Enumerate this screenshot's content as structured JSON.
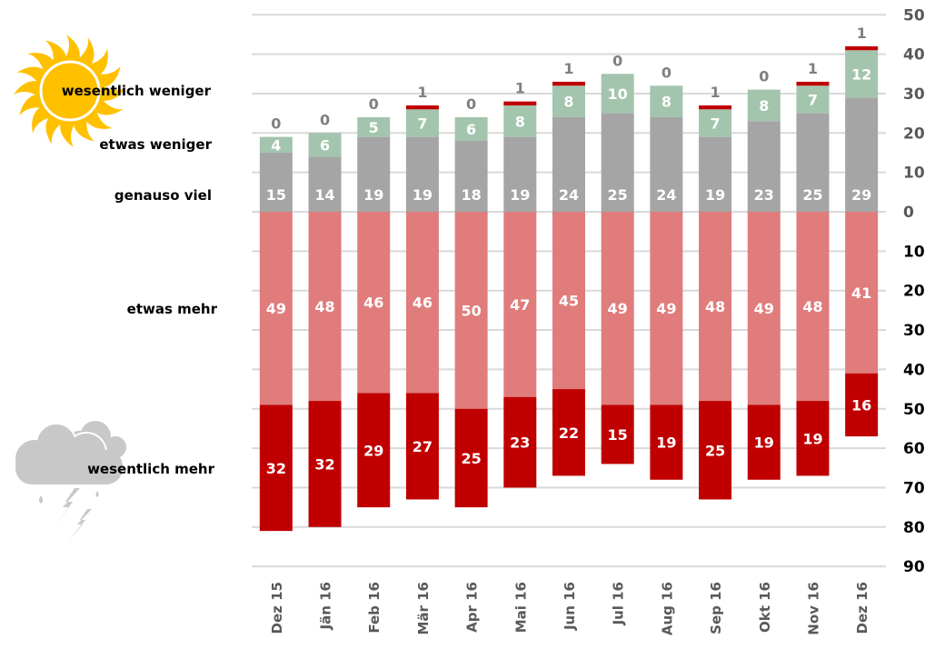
{
  "chart_data": {
    "type": "bar",
    "subtype": "diverging-stacked",
    "title": "",
    "xlabel": "",
    "ylabel": "",
    "categories": [
      "Dez 15",
      "Jän 16",
      "Feb 16",
      "Mär 16",
      "Apr 16",
      "Mai 16",
      "Jun 16",
      "Jul 16",
      "Aug 16",
      "Sep 16",
      "Okt 16",
      "Nov 16",
      "Dez 16"
    ],
    "series": [
      {
        "name": "genauso viel",
        "direction": "up",
        "color": "#a5a5a5",
        "values": [
          15,
          14,
          19,
          19,
          18,
          19,
          24,
          25,
          24,
          19,
          23,
          25,
          29
        ]
      },
      {
        "name": "etwas weniger",
        "direction": "up",
        "color": "#a3c4ad",
        "values": [
          4,
          6,
          5,
          7,
          6,
          8,
          8,
          10,
          8,
          7,
          8,
          7,
          12
        ]
      },
      {
        "name": "wesentlich weniger",
        "direction": "up",
        "color": "#c00000",
        "values": [
          0,
          0,
          0,
          1,
          0,
          1,
          1,
          0,
          0,
          1,
          0,
          1,
          1
        ]
      },
      {
        "name": "etwas mehr",
        "direction": "down",
        "color": "#e07c7c",
        "values": [
          49,
          48,
          46,
          46,
          50,
          47,
          45,
          49,
          49,
          48,
          49,
          48,
          41
        ]
      },
      {
        "name": "wesentlich mehr",
        "direction": "down",
        "color": "#c00000",
        "values": [
          32,
          32,
          29,
          27,
          25,
          23,
          22,
          15,
          19,
          25,
          19,
          19,
          16
        ]
      }
    ],
    "y_axis": {
      "position": "right",
      "upper_ticks": [
        "50",
        "40",
        "30",
        "20",
        "10",
        "0"
      ],
      "lower_ticks": [
        "10",
        "20",
        "30",
        "40",
        "50",
        "60",
        "70",
        "80",
        "90"
      ],
      "upper_range": [
        0,
        50
      ],
      "lower_range": [
        0,
        90
      ],
      "upper_tick_color": "#595959",
      "lower_tick_color": "#000000"
    },
    "grid": true,
    "grid_color": "#d9d9d9",
    "legend": {
      "placement": "left",
      "items": [
        {
          "label": "wesentlich weniger",
          "icon": "sun-icon"
        },
        {
          "label": "etwas weniger"
        },
        {
          "label": "genauso viel"
        },
        {
          "label": "etwas mehr"
        },
        {
          "label": "wesentlich mehr",
          "icon": "storm-cloud-icon"
        }
      ]
    }
  },
  "icons": {
    "sun": {
      "name": "sun-icon",
      "color": "#ffc000"
    },
    "storm": {
      "name": "storm-cloud-icon",
      "color": "#bfbfbf"
    }
  }
}
